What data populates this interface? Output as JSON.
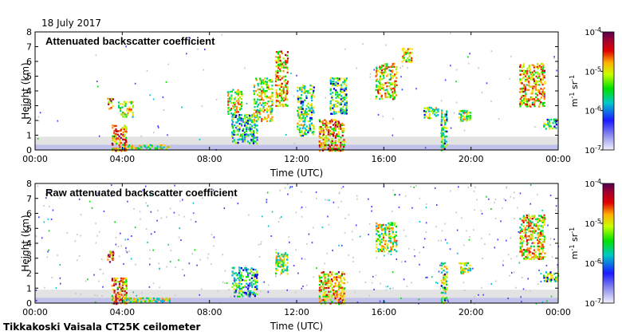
{
  "date": "18 July 2017",
  "footer": "Tikkakoski Vaisala CT25K ceilometer",
  "colors": {
    "noise": "#d0d0d0",
    "low_band": "#b8b8ee"
  },
  "chart_data": [
    {
      "type": "heatmap",
      "title": "Attenuated backscatter coefficient",
      "xlabel": "Time (UTC)",
      "ylabel": "Height (km)",
      "xlim": [
        0,
        24
      ],
      "ylim": [
        0,
        8
      ],
      "xticks": [
        "00:00",
        "04:00",
        "08:00",
        "12:00",
        "16:00",
        "20:00",
        "00:00"
      ],
      "yticks": [
        "0",
        "1",
        "2",
        "3",
        "4",
        "5",
        "6",
        "7",
        "8"
      ],
      "colorbar": {
        "unit_base": "m",
        "unit_exp": "-1",
        "unit_mid": " sr",
        "scale": "log",
        "ticks": [
          {
            "b": "10",
            "e": "-7"
          },
          {
            "b": "10",
            "e": "-6"
          },
          {
            "b": "10",
            "e": "-5"
          },
          {
            "b": "10",
            "e": "-4"
          }
        ]
      },
      "noise_level": 0.12,
      "features": [
        {
          "t0": 3.3,
          "t1": 3.6,
          "h0": 2.8,
          "h1": 3.6,
          "lvl": 0.82
        },
        {
          "t0": 3.5,
          "t1": 4.2,
          "h0": 0.0,
          "h1": 1.8,
          "lvl": 0.78
        },
        {
          "t0": 3.8,
          "t1": 4.5,
          "h0": 2.3,
          "h1": 3.4,
          "lvl": 0.62
        },
        {
          "t0": 4.0,
          "t1": 6.2,
          "h0": 0.15,
          "h1": 0.45,
          "lvl": 0.6
        },
        {
          "t0": 8.8,
          "t1": 9.5,
          "h0": 2.5,
          "h1": 4.2,
          "lvl": 0.65
        },
        {
          "t0": 9.0,
          "t1": 10.2,
          "h0": 0.5,
          "h1": 2.5,
          "lvl": 0.45
        },
        {
          "t0": 10.0,
          "t1": 10.9,
          "h0": 2.0,
          "h1": 5.0,
          "lvl": 0.62
        },
        {
          "t0": 11.0,
          "t1": 11.6,
          "h0": 3.0,
          "h1": 6.8,
          "lvl": 0.72
        },
        {
          "t0": 12.0,
          "t1": 12.8,
          "h0": 1.0,
          "h1": 4.5,
          "lvl": 0.55
        },
        {
          "t0": 13.0,
          "t1": 14.2,
          "h0": 0.0,
          "h1": 2.2,
          "lvl": 0.75
        },
        {
          "t0": 13.5,
          "t1": 14.3,
          "h0": 2.5,
          "h1": 5.0,
          "lvl": 0.5
        },
        {
          "t0": 15.6,
          "t1": 16.6,
          "h0": 3.5,
          "h1": 6.0,
          "lvl": 0.68
        },
        {
          "t0": 16.8,
          "t1": 17.3,
          "h0": 6.0,
          "h1": 7.0,
          "lvl": 0.7
        },
        {
          "t0": 17.8,
          "t1": 18.5,
          "h0": 2.2,
          "h1": 3.0,
          "lvl": 0.55
        },
        {
          "t0": 18.6,
          "t1": 18.9,
          "h0": 0.0,
          "h1": 2.8,
          "lvl": 0.55
        },
        {
          "t0": 19.4,
          "t1": 20.0,
          "h0": 2.0,
          "h1": 2.8,
          "lvl": 0.6
        },
        {
          "t0": 22.2,
          "t1": 23.4,
          "h0": 3.0,
          "h1": 6.0,
          "lvl": 0.72
        },
        {
          "t0": 23.3,
          "t1": 24.0,
          "h0": 1.5,
          "h1": 2.2,
          "lvl": 0.5
        }
      ]
    },
    {
      "type": "heatmap",
      "title": "Raw attenuated backscatter coefficient",
      "xlabel": "Time (UTC)",
      "ylabel": "Height (km)",
      "xlim": [
        0,
        24
      ],
      "ylim": [
        0,
        8
      ],
      "xticks": [
        "00:00",
        "04:00",
        "08:00",
        "12:00",
        "16:00",
        "20:00",
        "00:00"
      ],
      "yticks": [
        "0",
        "1",
        "2",
        "3",
        "4",
        "5",
        "6",
        "7",
        "8"
      ],
      "colorbar": {
        "unit_base": "m",
        "unit_exp": "-1",
        "unit_mid": " sr",
        "scale": "log",
        "ticks": [
          {
            "b": "10",
            "e": "-7"
          },
          {
            "b": "10",
            "e": "-6"
          },
          {
            "b": "10",
            "e": "-5"
          },
          {
            "b": "10",
            "e": "-4"
          }
        ]
      },
      "noise_level": 0.55,
      "features": [
        {
          "t0": 3.3,
          "t1": 3.6,
          "h0": 2.8,
          "h1": 3.6,
          "lvl": 0.82
        },
        {
          "t0": 3.5,
          "t1": 4.2,
          "h0": 0.0,
          "h1": 1.8,
          "lvl": 0.78
        },
        {
          "t0": 4.0,
          "t1": 6.2,
          "h0": 0.15,
          "h1": 0.45,
          "lvl": 0.6
        },
        {
          "t0": 9.0,
          "t1": 10.2,
          "h0": 0.5,
          "h1": 2.5,
          "lvl": 0.45
        },
        {
          "t0": 11.0,
          "t1": 11.6,
          "h0": 2.0,
          "h1": 3.5,
          "lvl": 0.6
        },
        {
          "t0": 13.0,
          "t1": 14.2,
          "h0": 0.0,
          "h1": 2.2,
          "lvl": 0.75
        },
        {
          "t0": 15.6,
          "t1": 16.6,
          "h0": 3.5,
          "h1": 5.5,
          "lvl": 0.62
        },
        {
          "t0": 18.6,
          "t1": 18.9,
          "h0": 0.0,
          "h1": 2.8,
          "lvl": 0.55
        },
        {
          "t0": 19.4,
          "t1": 20.0,
          "h0": 2.0,
          "h1": 2.8,
          "lvl": 0.6
        },
        {
          "t0": 22.2,
          "t1": 23.4,
          "h0": 3.0,
          "h1": 6.0,
          "lvl": 0.7
        },
        {
          "t0": 23.3,
          "t1": 24.0,
          "h0": 1.5,
          "h1": 2.2,
          "lvl": 0.5
        }
      ]
    }
  ]
}
